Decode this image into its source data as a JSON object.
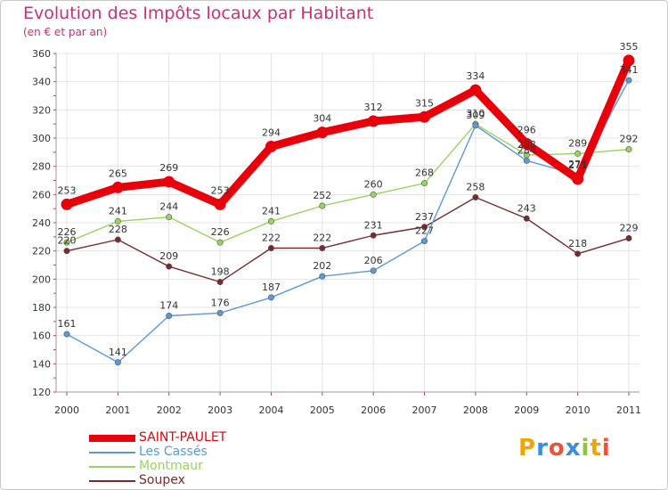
{
  "title": "Evolution des Impôts locaux par Habitant",
  "subtitle": "(en € et par an)",
  "chart_data": {
    "type": "line",
    "title": "Evolution des Impôts locaux par Habitant",
    "subtitle": "(en € et par an)",
    "xlabel": "",
    "ylabel": "",
    "ylim": [
      120,
      360
    ],
    "yticks": [
      "120",
      "140",
      "160",
      "180",
      "200",
      "220",
      "240",
      "260",
      "280",
      "300",
      "320",
      "340",
      "360"
    ],
    "grid": true,
    "legend_position": "bottom-left",
    "categories": [
      "2000",
      "2001",
      "2002",
      "2003",
      "2004",
      "2005",
      "2006",
      "2007",
      "2008",
      "2009",
      "2010",
      "2011"
    ],
    "series": [
      {
        "name": "SAINT-PAULET",
        "color": "#e8000b",
        "values": [
          253,
          265,
          269,
          253,
          294,
          304,
          312,
          315,
          334,
          296,
          271,
          355
        ]
      },
      {
        "name": "Les Cassés",
        "color": "#5b9bd5",
        "values": [
          161,
          141,
          174,
          176,
          187,
          202,
          206,
          227,
          309,
          284,
          274,
          341
        ]
      },
      {
        "name": "Montmaur",
        "color": "#9ad45f",
        "values": [
          226,
          241,
          244,
          226,
          241,
          252,
          260,
          268,
          310,
          288,
          289,
          292
        ]
      },
      {
        "name": "Soupex",
        "color": "#7a2a2e",
        "values": [
          220,
          228,
          209,
          198,
          222,
          222,
          231,
          237,
          258,
          243,
          218,
          229
        ]
      }
    ]
  },
  "logo": {
    "text": "Proxiti",
    "letters": [
      "P",
      "r",
      "o",
      "x",
      "i",
      "t",
      "i"
    ],
    "colors": [
      "#f2a400",
      "#3a8fd6",
      "#e8543a",
      "#3a8fd6",
      "#8cc63f",
      "#f2a400",
      "#e8543a"
    ]
  }
}
